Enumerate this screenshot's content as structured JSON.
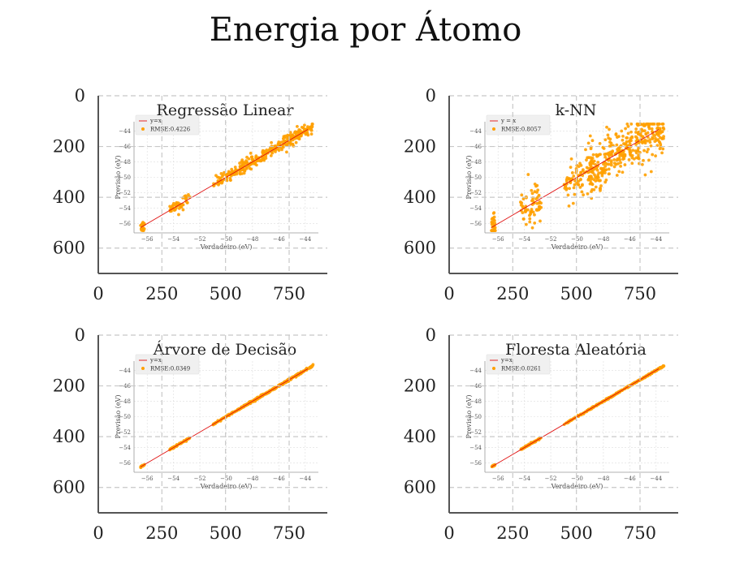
{
  "title": "Energia por Átomo",
  "colors": {
    "points": "#FFA000",
    "identity_line": "#E01010",
    "axis": "#555555",
    "grid": "#c8c8c8"
  },
  "chart_data": [
    {
      "type": "scatter",
      "title": "Regressão Linear",
      "xlabel": "Verdadeiro (eV)",
      "ylabel": "Previsão (eV)",
      "xlim": [
        -57,
        -43
      ],
      "ylim": [
        -57.2,
        -42.8
      ],
      "xticks": [
        -56,
        -54,
        -52,
        -50,
        -48,
        -46,
        -44
      ],
      "yticks": [
        -44,
        -46,
        -48,
        -50,
        -52,
        -54,
        -56
      ],
      "legend": {
        "position": "top-left",
        "line_label": "y=x",
        "points_label": "RMSE:0.4226"
      },
      "spread": 0.45,
      "outer_axes": {
        "xticks": [
          0,
          250,
          500,
          750
        ],
        "yticks": [
          0,
          200,
          400,
          600
        ],
        "xlim": [
          0,
          900
        ],
        "ylim": [
          0,
          700
        ]
      }
    },
    {
      "type": "scatter",
      "title": "k-NN",
      "xlabel": "Verdadeiro (eV)",
      "ylabel": "Previsão (eV)",
      "xlim": [
        -57,
        -43
      ],
      "ylim": [
        -57.2,
        -42.8
      ],
      "xticks": [
        -56,
        -54,
        -52,
        -50,
        -48,
        -46,
        -44
      ],
      "yticks": [
        -44,
        -46,
        -48,
        -50,
        -52,
        -54,
        -56
      ],
      "legend": {
        "position": "top-left",
        "line_label": "y = x",
        "points_label": "RMSE:0.8057"
      },
      "spread": 1.6,
      "outer_axes": {
        "xticks": [
          0,
          250,
          500,
          750
        ],
        "yticks": [
          0,
          200,
          400,
          600
        ],
        "xlim": [
          0,
          900
        ],
        "ylim": [
          0,
          700
        ]
      }
    },
    {
      "type": "scatter",
      "title": "Árvore de Decisão",
      "xlabel": "Verdadeiro (eV)",
      "ylabel": "Previsão (eV)",
      "xlim": [
        -57,
        -43
      ],
      "ylim": [
        -57.2,
        -42.8
      ],
      "xticks": [
        -56,
        -54,
        -52,
        -50,
        -48,
        -46,
        -44
      ],
      "yticks": [
        -44,
        -46,
        -48,
        -50,
        -52,
        -54,
        -56
      ],
      "legend": {
        "position": "top-left",
        "line_label": "y=x",
        "points_label": "RMSE:0.0349"
      },
      "spread": 0.06,
      "outer_axes": {
        "xticks": [
          0,
          250,
          500,
          750
        ],
        "yticks": [
          0,
          200,
          400,
          600
        ],
        "xlim": [
          0,
          900
        ],
        "ylim": [
          0,
          700
        ]
      }
    },
    {
      "type": "scatter",
      "title": "Floresta Aleatória",
      "xlabel": "Verdadeiro (eV)",
      "ylabel": "Previsão (eV)",
      "xlim": [
        -57,
        -43
      ],
      "ylim": [
        -57.2,
        -42.8
      ],
      "xticks": [
        -56,
        -54,
        -52,
        -50,
        -48,
        -46,
        -44
      ],
      "yticks": [
        -44,
        -46,
        -48,
        -50,
        -52,
        -54,
        -56
      ],
      "legend": {
        "position": "top-left",
        "line_label": "y=x",
        "points_label": "RMSE:0.0261"
      },
      "spread": 0.04,
      "outer_axes": {
        "xticks": [
          0,
          250,
          500,
          750
        ],
        "yticks": [
          0,
          200,
          400,
          600
        ],
        "xlim": [
          0,
          900
        ],
        "ylim": [
          0,
          700
        ]
      }
    }
  ]
}
